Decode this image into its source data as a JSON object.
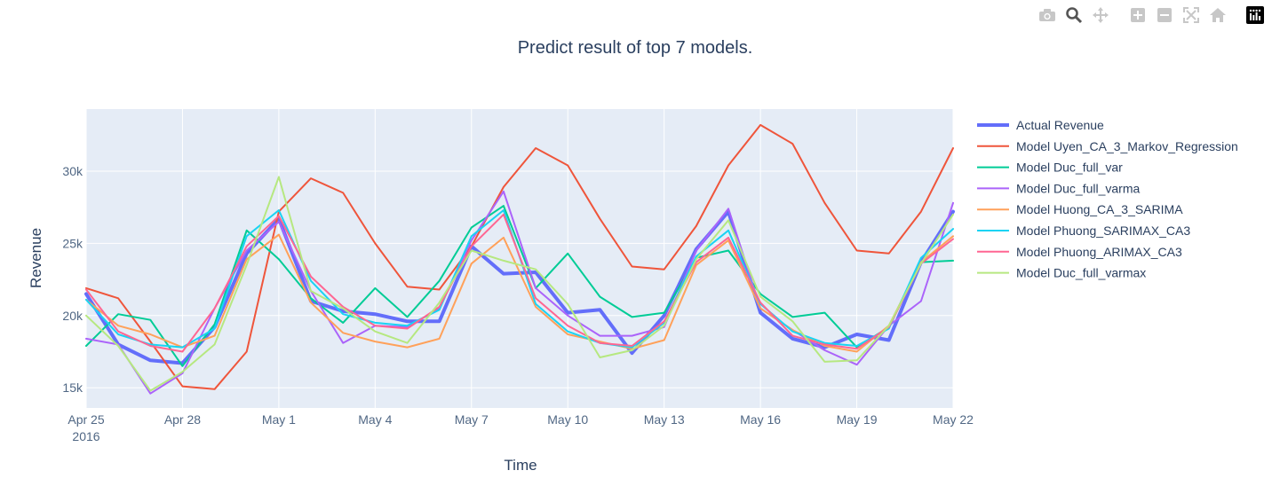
{
  "modebar": [
    {
      "icon": "camera-icon",
      "title": "Download plot as a png"
    },
    {
      "icon": "zoom-icon",
      "title": "Zoom"
    },
    {
      "icon": "pan-icon",
      "title": "Pan"
    },
    {
      "icon": "zoom-in-icon",
      "title": "Zoom in"
    },
    {
      "icon": "zoom-out-icon",
      "title": "Zoom out"
    },
    {
      "icon": "autoscale-icon",
      "title": "Autoscale"
    },
    {
      "icon": "home-icon",
      "title": "Reset axes"
    },
    {
      "icon": "plotly-logo-icon",
      "title": "Produced with Plotly"
    }
  ],
  "chart_data": {
    "type": "line",
    "title": "Predict result of top 7 models.",
    "xlabel": "Time",
    "ylabel": "Revenue",
    "x": [
      "2016-04-25",
      "2016-04-26",
      "2016-04-27",
      "2016-04-28",
      "2016-04-29",
      "2016-04-30",
      "2016-05-01",
      "2016-05-02",
      "2016-05-03",
      "2016-05-04",
      "2016-05-05",
      "2016-05-06",
      "2016-05-07",
      "2016-05-08",
      "2016-05-09",
      "2016-05-10",
      "2016-05-11",
      "2016-05-12",
      "2016-05-13",
      "2016-05-14",
      "2016-05-15",
      "2016-05-16",
      "2016-05-17",
      "2016-05-18",
      "2016-05-19",
      "2016-05-20",
      "2016-05-21",
      "2016-05-22"
    ],
    "xlim": [
      "2016-04-25",
      "2016-05-22"
    ],
    "xticks": [
      {
        "date": "2016-04-25",
        "label": "Apr 25",
        "sublabel": "2016"
      },
      {
        "date": "2016-04-28",
        "label": "Apr 28"
      },
      {
        "date": "2016-05-01",
        "label": "May 1"
      },
      {
        "date": "2016-05-04",
        "label": "May 4"
      },
      {
        "date": "2016-05-07",
        "label": "May 7"
      },
      {
        "date": "2016-05-10",
        "label": "May 10"
      },
      {
        "date": "2016-05-13",
        "label": "May 13"
      },
      {
        "date": "2016-05-16",
        "label": "May 16"
      },
      {
        "date": "2016-05-19",
        "label": "May 19"
      },
      {
        "date": "2016-05-22",
        "label": "May 22"
      }
    ],
    "ylim": [
      13600,
      34300
    ],
    "yticks": [
      {
        "value": 15000,
        "label": "15k"
      },
      {
        "value": 20000,
        "label": "20k"
      },
      {
        "value": 25000,
        "label": "25k"
      },
      {
        "value": 30000,
        "label": "30k"
      }
    ],
    "grid": true,
    "legend_position": "right",
    "plot_bg": "#e5ecf6",
    "series": [
      {
        "name": "Actual Revenue",
        "color": "#636efa",
        "width": 4,
        "values": [
          21500,
          18000,
          16900,
          16700,
          19200,
          24300,
          26700,
          21000,
          20300,
          20100,
          19600,
          19600,
          24800,
          22900,
          23000,
          20200,
          20400,
          17400,
          20000,
          24600,
          27200,
          20200,
          18400,
          17800,
          18700,
          18300,
          23700,
          27200
        ]
      },
      {
        "name": "Model Uyen_CA_3_Markov_Regression",
        "color": "#ef553b",
        "width": 2,
        "values": [
          21900,
          21200,
          18200,
          15100,
          14900,
          17500,
          27200,
          29500,
          28500,
          25000,
          22000,
          21800,
          24800,
          28900,
          31600,
          30400,
          26700,
          23400,
          23200,
          26200,
          30400,
          33200,
          31900,
          27800,
          24500,
          24300,
          27200,
          31600
        ]
      },
      {
        "name": "Model Duc_full_var",
        "color": "#00cc96",
        "width": 2,
        "values": [
          17900,
          20100,
          19700,
          16500,
          19400,
          25900,
          23900,
          21200,
          19500,
          21900,
          19900,
          22400,
          26100,
          27600,
          21900,
          24300,
          21300,
          19900,
          20200,
          24000,
          24500,
          21500,
          19900,
          20200,
          17800,
          19200,
          23700,
          23800
        ]
      },
      {
        "name": "Model Duc_full_varma",
        "color": "#ab63fa",
        "width": 2,
        "values": [
          18400,
          18000,
          14600,
          16000,
          20500,
          24500,
          26500,
          21700,
          18100,
          19300,
          19200,
          20500,
          25200,
          28600,
          21900,
          20000,
          18600,
          18600,
          19200,
          24500,
          27400,
          20500,
          19000,
          17600,
          16600,
          19300,
          21000,
          27800
        ]
      },
      {
        "name": "Model Huong_CA_3_SARIMA",
        "color": "#ffa15a",
        "width": 2,
        "values": [
          21100,
          19300,
          18700,
          17800,
          18600,
          23900,
          25600,
          20900,
          18800,
          18200,
          17800,
          18400,
          23600,
          25400,
          20600,
          18700,
          18200,
          17700,
          18300,
          23500,
          25200,
          20500,
          19000,
          17900,
          17500,
          19300,
          23700,
          25500
        ]
      },
      {
        "name": "Model Phuong_SARIMAX_CA3",
        "color": "#19d3f3",
        "width": 2,
        "values": [
          21100,
          18700,
          18000,
          17800,
          19100,
          25500,
          27300,
          22400,
          20100,
          19500,
          19300,
          20400,
          25500,
          27300,
          20800,
          18900,
          18100,
          17800,
          19500,
          24100,
          25900,
          20800,
          18900,
          18100,
          17900,
          19100,
          24000,
          26000
        ]
      },
      {
        "name": "Model Phuong_ARIMAX_CA3",
        "color": "#ff6692",
        "width": 2,
        "values": [
          21800,
          18900,
          17900,
          17500,
          20500,
          24800,
          26900,
          22700,
          20600,
          19300,
          19100,
          20600,
          24800,
          27000,
          21200,
          19300,
          18100,
          17900,
          19600,
          23700,
          25400,
          20900,
          18600,
          18000,
          17700,
          19200,
          23600,
          25300
        ]
      },
      {
        "name": "Model Duc_full_varmax",
        "color": "#b6e880",
        "width": 2,
        "values": [
          20000,
          17900,
          14800,
          16100,
          18000,
          23500,
          29600,
          21700,
          20500,
          18900,
          18100,
          20900,
          24500,
          23800,
          23200,
          20800,
          17100,
          17600,
          19300,
          23900,
          26600,
          21300,
          19600,
          16800,
          16900,
          19300,
          23600,
          27000
        ]
      }
    ]
  }
}
